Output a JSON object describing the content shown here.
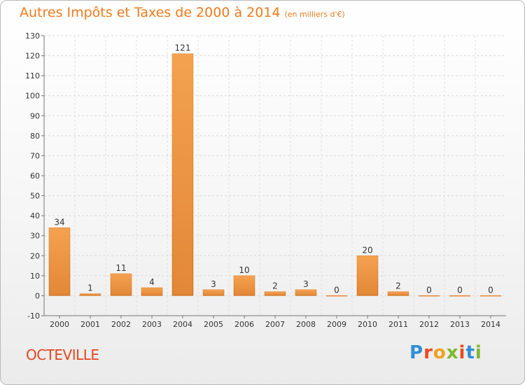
{
  "header": {
    "title": "Autres Impôts et Taxes de 2000 à 2014",
    "unit": "(en milliers d'€)"
  },
  "footer": {
    "commune": "OCTEVILLE",
    "logo": "Proxiti"
  },
  "colors": {
    "bar": "#f0923a",
    "bar_dark": "#c8661c",
    "title": "#f07a1a",
    "commune": "#e2471f"
  },
  "chart_data": {
    "type": "bar",
    "title": "Autres Impôts et Taxes de 2000 à 2014",
    "subtitle": "(en milliers d'€)",
    "xlabel": "",
    "ylabel": "",
    "categories": [
      "2000",
      "2001",
      "2002",
      "2003",
      "2004",
      "2005",
      "2006",
      "2007",
      "2008",
      "2009",
      "2010",
      "2011",
      "2012",
      "2013",
      "2014"
    ],
    "values": [
      34,
      1,
      11,
      4,
      121,
      3,
      10,
      2,
      3,
      0,
      20,
      2,
      0,
      0,
      0
    ],
    "ylim": [
      -10,
      130
    ],
    "yticks": [
      -10,
      0,
      10,
      20,
      30,
      40,
      50,
      60,
      70,
      80,
      90,
      100,
      110,
      120,
      130
    ],
    "grid": true,
    "legend": "none"
  }
}
